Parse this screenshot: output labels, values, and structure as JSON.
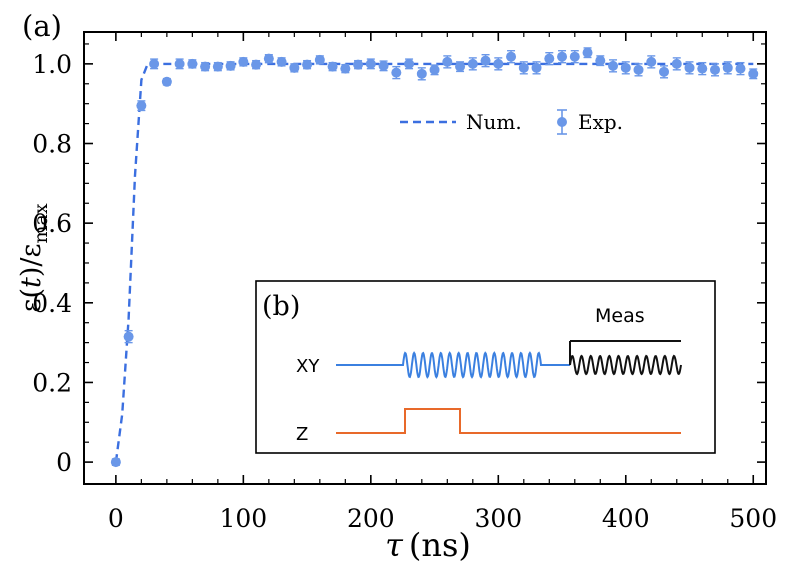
{
  "chart_data": {
    "type": "scatter",
    "panel_label": "(a)",
    "xlabel_symbol": "τ",
    "xlabel_unit": "(ns)",
    "ylabel_parts": {
      "open": "ε(",
      "var": "t",
      "close": ")/ε",
      "sub": "max"
    },
    "xlim": [
      -25,
      510
    ],
    "ylim": [
      -0.055,
      1.08
    ],
    "x_ticks": [
      0,
      100,
      200,
      300,
      400,
      500
    ],
    "x_tick_labels": [
      "0",
      "100",
      "200",
      "300",
      "400",
      "500"
    ],
    "y_ticks": [
      0,
      0.2,
      0.4,
      0.6,
      0.8,
      1.0
    ],
    "y_tick_labels": [
      "0",
      "0.2",
      "0.4",
      "0.6",
      "0.8",
      "1.0"
    ],
    "legend": {
      "placement": "upper-right",
      "entries": [
        "Num.",
        "Exp."
      ]
    },
    "series": [
      {
        "name": "Num.",
        "style": "dashed",
        "color": "#3b6fe0",
        "x": [
          0,
          5,
          10,
          15,
          20,
          25,
          30,
          500
        ],
        "y": [
          0.0,
          0.12,
          0.36,
          0.72,
          0.96,
          1.0,
          1.0,
          1.0
        ]
      },
      {
        "name": "Exp.",
        "style": "markers-errorbars",
        "color": "#6a97e8",
        "x": [
          0,
          10,
          20,
          30,
          40,
          50,
          60,
          70,
          80,
          90,
          100,
          110,
          120,
          130,
          140,
          150,
          160,
          170,
          180,
          190,
          200,
          210,
          220,
          230,
          240,
          250,
          260,
          270,
          280,
          290,
          300,
          310,
          320,
          330,
          340,
          350,
          360,
          370,
          380,
          390,
          400,
          410,
          420,
          430,
          440,
          450,
          460,
          470,
          480,
          490,
          500
        ],
        "y": [
          0.0,
          0.315,
          0.895,
          1.0,
          0.955,
          1.0,
          1.0,
          0.993,
          0.993,
          0.995,
          1.005,
          0.998,
          1.013,
          1.005,
          0.99,
          0.998,
          1.01,
          0.993,
          0.988,
          0.998,
          1.0,
          0.995,
          0.978,
          1.0,
          0.975,
          0.985,
          1.005,
          0.993,
          1.0,
          1.008,
          1.0,
          1.018,
          0.99,
          0.99,
          1.013,
          1.018,
          1.018,
          1.028,
          1.008,
          0.995,
          0.99,
          0.985,
          1.005,
          0.98,
          1.0,
          0.99,
          0.988,
          0.985,
          0.99,
          0.988,
          0.975
        ],
        "yerr": [
          0.008,
          0.015,
          0.012,
          0.012,
          0.008,
          0.012,
          0.01,
          0.01,
          0.01,
          0.01,
          0.01,
          0.01,
          0.01,
          0.01,
          0.01,
          0.01,
          0.01,
          0.01,
          0.01,
          0.01,
          0.012,
          0.012,
          0.015,
          0.012,
          0.015,
          0.012,
          0.015,
          0.012,
          0.015,
          0.015,
          0.015,
          0.015,
          0.015,
          0.015,
          0.015,
          0.015,
          0.015,
          0.012,
          0.012,
          0.015,
          0.015,
          0.015,
          0.015,
          0.015,
          0.015,
          0.015,
          0.015,
          0.015,
          0.015,
          0.015,
          0.012
        ]
      }
    ],
    "inset": {
      "label": "(b)",
      "meas_label": "Meas",
      "channels": [
        {
          "name": "XY",
          "color": "#3b80e0"
        },
        {
          "name": "Z",
          "color": "#e8692a"
        }
      ],
      "readout_color": "#111111"
    }
  }
}
